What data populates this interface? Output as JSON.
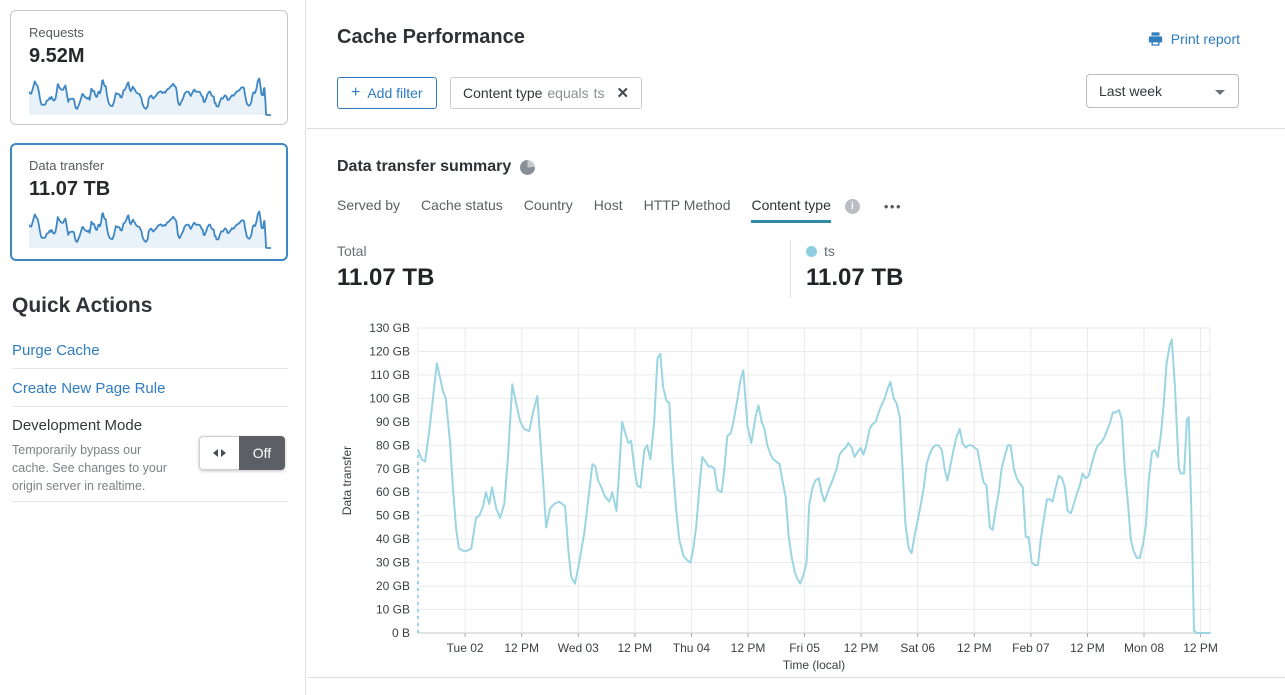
{
  "colors": {
    "accent": "#2f7cbf",
    "selected_card_border": "#3e87c4",
    "chart_line": "#9bd5e2",
    "legend_dot": "#8ecfdf",
    "tab_underline": "#2f8ca3",
    "toggle_dark": "#5c6066",
    "spark_line": "#3e87c4",
    "spark_fill": "#e9f2f9"
  },
  "icons": {
    "plus": "+",
    "close": "✕",
    "info": "i",
    "more": "•••"
  },
  "sidebar": {
    "cards": [
      {
        "label": "Requests",
        "value": "9.52M"
      },
      {
        "label": "Data transfer",
        "value": "11.07 TB"
      }
    ],
    "quick_actions": {
      "title": "Quick Actions",
      "links": [
        "Purge Cache",
        "Create New Page Rule"
      ]
    },
    "dev_mode": {
      "title": "Development Mode",
      "description": "Temporarily bypass our cache. See changes to your origin server in realtime.",
      "state": "Off"
    }
  },
  "header": {
    "title": "Cache Performance",
    "print_report": "Print report",
    "add_filter": "Add filter",
    "filter_chip": {
      "field": "Content type",
      "operator": "equals",
      "value": "ts"
    },
    "time_range": "Last week"
  },
  "summary": {
    "title": "Data transfer summary",
    "tabs": [
      "Served by",
      "Cache status",
      "Country",
      "Host",
      "HTTP Method",
      "Content type"
    ],
    "active_tab": "Content type",
    "total_label": "Total",
    "total_value": "11.07 TB",
    "legend": [
      {
        "name": "ts",
        "value": "11.07 TB"
      }
    ]
  },
  "chart_data": {
    "type": "line",
    "title": "Data transfer summary",
    "xlabel": "Time (local)",
    "ylabel": "Data transfer",
    "unit": "GB",
    "ylim": [
      0,
      130
    ],
    "y_ticks": [
      "0 B",
      "10 GB",
      "20 GB",
      "30 GB",
      "40 GB",
      "50 GB",
      "60 GB",
      "70 GB",
      "80 GB",
      "90 GB",
      "100 GB",
      "110 GB",
      "120 GB",
      "130 GB"
    ],
    "x_range_hours": [
      0,
      168
    ],
    "x_ticks": [
      {
        "h": 10,
        "label": "Tue 02"
      },
      {
        "h": 22,
        "label": "12 PM"
      },
      {
        "h": 34,
        "label": "Wed 03"
      },
      {
        "h": 46,
        "label": "12 PM"
      },
      {
        "h": 58,
        "label": "Thu 04"
      },
      {
        "h": 70,
        "label": "12 PM"
      },
      {
        "h": 82,
        "label": "Fri 05"
      },
      {
        "h": 94,
        "label": "12 PM"
      },
      {
        "h": 106,
        "label": "Sat 06"
      },
      {
        "h": 118,
        "label": "12 PM"
      },
      {
        "h": 130,
        "label": "Feb 07"
      },
      {
        "h": 142,
        "label": "12 PM"
      },
      {
        "h": 154,
        "label": "Mon 08"
      },
      {
        "h": 166,
        "label": "12 PM"
      }
    ],
    "grid": true,
    "start_dashed": true,
    "series": [
      {
        "name": "ts",
        "color": "#9bd5e2",
        "points": [
          [
            0,
            78
          ],
          [
            0.8,
            74
          ],
          [
            1.5,
            73
          ],
          [
            2.5,
            88
          ],
          [
            4,
            115
          ],
          [
            5.3,
            103
          ],
          [
            5.9,
            100
          ],
          [
            6.8,
            81
          ],
          [
            7.4,
            62
          ],
          [
            8.1,
            44
          ],
          [
            8.7,
            36
          ],
          [
            9.6,
            35
          ],
          [
            10.4,
            35
          ],
          [
            11.3,
            36
          ],
          [
            12.3,
            49
          ],
          [
            13,
            50
          ],
          [
            13.8,
            54
          ],
          [
            14.4,
            60
          ],
          [
            15.1,
            55
          ],
          [
            15.7,
            62
          ],
          [
            16.6,
            53
          ],
          [
            17.4,
            49
          ],
          [
            18.3,
            55
          ],
          [
            19.1,
            75
          ],
          [
            20,
            106
          ],
          [
            20.8,
            98
          ],
          [
            21.7,
            90
          ],
          [
            22.5,
            87
          ],
          [
            23.6,
            86
          ],
          [
            24.4,
            94
          ],
          [
            25.3,
            101
          ],
          [
            26.1,
            78
          ],
          [
            27.2,
            45
          ],
          [
            28,
            53
          ],
          [
            28.9,
            55
          ],
          [
            29.9,
            56
          ],
          [
            30.6,
            55
          ],
          [
            31.2,
            54
          ],
          [
            31.9,
            35
          ],
          [
            32.5,
            24
          ],
          [
            33.3,
            21
          ],
          [
            34.2,
            30
          ],
          [
            35.3,
            43
          ],
          [
            36.3,
            60
          ],
          [
            37,
            72
          ],
          [
            37.6,
            71
          ],
          [
            38.2,
            65
          ],
          [
            38.9,
            62
          ],
          [
            39.7,
            58
          ],
          [
            40.6,
            56
          ],
          [
            41.2,
            60
          ],
          [
            42.1,
            52
          ],
          [
            42.7,
            70
          ],
          [
            43.3,
            90
          ],
          [
            44,
            85
          ],
          [
            44.6,
            81
          ],
          [
            45.2,
            82
          ],
          [
            45.9,
            70
          ],
          [
            46.5,
            63
          ],
          [
            47.2,
            62
          ],
          [
            48,
            78
          ],
          [
            48.6,
            80
          ],
          [
            49.3,
            74
          ],
          [
            50.1,
            90
          ],
          [
            50.8,
            117
          ],
          [
            51.4,
            119
          ],
          [
            52,
            105
          ],
          [
            52.7,
            99
          ],
          [
            53.3,
            98
          ],
          [
            54,
            72
          ],
          [
            54.8,
            52
          ],
          [
            55.4,
            40
          ],
          [
            56.3,
            33
          ],
          [
            57.1,
            31
          ],
          [
            57.8,
            30
          ],
          [
            58.4,
            36
          ],
          [
            59,
            45
          ],
          [
            59.7,
            62
          ],
          [
            60.3,
            75
          ],
          [
            61,
            73
          ],
          [
            61.6,
            71
          ],
          [
            62.2,
            71
          ],
          [
            62.9,
            70
          ],
          [
            63.5,
            61
          ],
          [
            64.4,
            60
          ],
          [
            65,
            70
          ],
          [
            65.6,
            84
          ],
          [
            66.3,
            85
          ],
          [
            66.9,
            90
          ],
          [
            67.8,
            100
          ],
          [
            68.4,
            108
          ],
          [
            69,
            112
          ],
          [
            69.9,
            88
          ],
          [
            70.7,
            81
          ],
          [
            71.6,
            92
          ],
          [
            72.2,
            97
          ],
          [
            72.9,
            90
          ],
          [
            73.5,
            87
          ],
          [
            74.1,
            80
          ],
          [
            74.8,
            76
          ],
          [
            75.4,
            74
          ],
          [
            76,
            73
          ],
          [
            76.7,
            72
          ],
          [
            77.3,
            65
          ],
          [
            78,
            58
          ],
          [
            78.6,
            42
          ],
          [
            79.2,
            33
          ],
          [
            79.9,
            26
          ],
          [
            80.5,
            23
          ],
          [
            81.1,
            21
          ],
          [
            81.8,
            25
          ],
          [
            82.4,
            30
          ],
          [
            83,
            55
          ],
          [
            83.7,
            62
          ],
          [
            84.3,
            65
          ],
          [
            85,
            66
          ],
          [
            85.6,
            60
          ],
          [
            86.2,
            56
          ],
          [
            86.9,
            60
          ],
          [
            87.5,
            63
          ],
          [
            88.1,
            66
          ],
          [
            88.8,
            70
          ],
          [
            89.4,
            76
          ],
          [
            90.1,
            78
          ],
          [
            90.7,
            79
          ],
          [
            91.3,
            81
          ],
          [
            92,
            79
          ],
          [
            92.6,
            75
          ],
          [
            93.2,
            77
          ],
          [
            93.9,
            79
          ],
          [
            94.5,
            76
          ],
          [
            95.1,
            80
          ],
          [
            95.8,
            87
          ],
          [
            96.4,
            89
          ],
          [
            97.1,
            90
          ],
          [
            97.7,
            94
          ],
          [
            98.3,
            97
          ],
          [
            99,
            100
          ],
          [
            99.6,
            104
          ],
          [
            100.2,
            107
          ],
          [
            100.9,
            100
          ],
          [
            101.5,
            98
          ],
          [
            102.2,
            92
          ],
          [
            102.8,
            70
          ],
          [
            103.4,
            46
          ],
          [
            104.1,
            36
          ],
          [
            104.7,
            34
          ],
          [
            105.3,
            41
          ],
          [
            106,
            48
          ],
          [
            106.6,
            54
          ],
          [
            107.3,
            62
          ],
          [
            107.9,
            72
          ],
          [
            108.5,
            76
          ],
          [
            109.2,
            79
          ],
          [
            109.8,
            80
          ],
          [
            110.4,
            80
          ],
          [
            111.1,
            78
          ],
          [
            111.7,
            70
          ],
          [
            112.3,
            65
          ],
          [
            113,
            72
          ],
          [
            113.6,
            78
          ],
          [
            114.3,
            84
          ],
          [
            114.9,
            87
          ],
          [
            115.5,
            81
          ],
          [
            116.2,
            79
          ],
          [
            116.8,
            80
          ],
          [
            117.4,
            80
          ],
          [
            118.1,
            79
          ],
          [
            118.7,
            78
          ],
          [
            119.4,
            70
          ],
          [
            120,
            64
          ],
          [
            120.6,
            63
          ],
          [
            121.3,
            45
          ],
          [
            121.9,
            44
          ],
          [
            122.5,
            52
          ],
          [
            123.2,
            60
          ],
          [
            123.8,
            70
          ],
          [
            124.4,
            75
          ],
          [
            125.1,
            80
          ],
          [
            125.7,
            80
          ],
          [
            126.4,
            70
          ],
          [
            127,
            66
          ],
          [
            127.6,
            64
          ],
          [
            128.3,
            62
          ],
          [
            128.9,
            41
          ],
          [
            129.5,
            41
          ],
          [
            130.2,
            30
          ],
          [
            130.8,
            29
          ],
          [
            131.5,
            29
          ],
          [
            132.1,
            40
          ],
          [
            132.7,
            48
          ],
          [
            133.4,
            57
          ],
          [
            134,
            57
          ],
          [
            134.6,
            56
          ],
          [
            135.3,
            62
          ],
          [
            135.9,
            67
          ],
          [
            136.6,
            66
          ],
          [
            137.2,
            62
          ],
          [
            137.8,
            52
          ],
          [
            138.5,
            51
          ],
          [
            139.1,
            55
          ],
          [
            139.7,
            59
          ],
          [
            140.4,
            63
          ],
          [
            141,
            68
          ],
          [
            141.6,
            66
          ],
          [
            142.3,
            67
          ],
          [
            142.9,
            72
          ],
          [
            143.6,
            77
          ],
          [
            144.2,
            80
          ],
          [
            144.8,
            81
          ],
          [
            145.5,
            83
          ],
          [
            146.1,
            86
          ],
          [
            146.7,
            89
          ],
          [
            147.4,
            94
          ],
          [
            148,
            94
          ],
          [
            148.7,
            95
          ],
          [
            149.3,
            91
          ],
          [
            149.9,
            70
          ],
          [
            150.6,
            55
          ],
          [
            151.2,
            40
          ],
          [
            151.8,
            35
          ],
          [
            152.5,
            32
          ],
          [
            153.1,
            32
          ],
          [
            153.8,
            38
          ],
          [
            154.4,
            46
          ],
          [
            155,
            65
          ],
          [
            155.7,
            77
          ],
          [
            156.3,
            78
          ],
          [
            156.9,
            75
          ],
          [
            157.6,
            85
          ],
          [
            158.2,
            98
          ],
          [
            158.8,
            115
          ],
          [
            159.5,
            123
          ],
          [
            159.9,
            125
          ],
          [
            160.6,
            104
          ],
          [
            161,
            86
          ],
          [
            161.4,
            70
          ],
          [
            161.8,
            68
          ],
          [
            162.5,
            68
          ],
          [
            163.1,
            91
          ],
          [
            163.5,
            92
          ],
          [
            164.2,
            40
          ],
          [
            164.6,
            1
          ],
          [
            165.2,
            0
          ],
          [
            166.3,
            0
          ],
          [
            167.4,
            0
          ],
          [
            168,
            0
          ]
        ]
      }
    ]
  }
}
